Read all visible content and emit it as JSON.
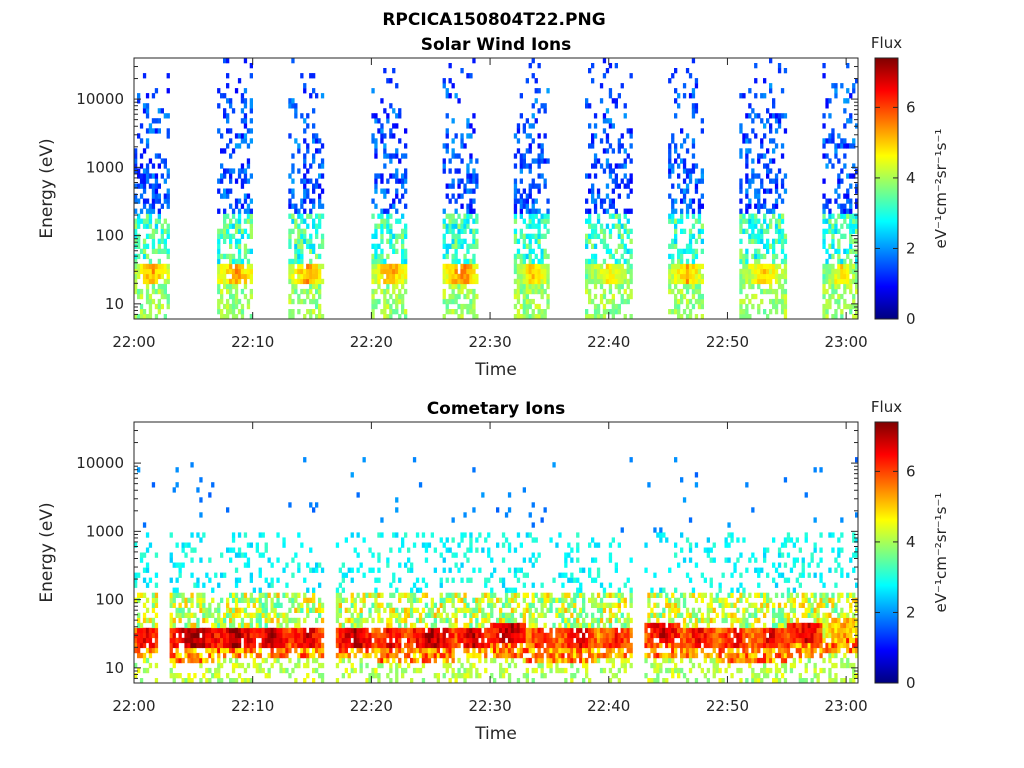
{
  "figure": {
    "title": "RPCICA150804T22.PNG"
  },
  "colorscale": {
    "colors": [
      "#00007f",
      "#0000ff",
      "#007fff",
      "#00ffff",
      "#7fff7f",
      "#ffff00",
      "#ff7f00",
      "#ff0000",
      "#7f0000"
    ],
    "range": [
      0,
      7.4
    ]
  },
  "chart_data": [
    {
      "type": "heatmap",
      "title": "Solar Wind Ions",
      "xlabel": "Time",
      "ylabel": "Energy (eV)",
      "xlim": [
        "22:00",
        "23:01"
      ],
      "ylim": [
        6,
        40000
      ],
      "yscale": "log",
      "xticks": [
        "22:00",
        "22:10",
        "22:20",
        "22:30",
        "22:40",
        "22:50",
        "23:00"
      ],
      "yticks": [
        "10",
        "100",
        "1000",
        "10000"
      ],
      "colorbar_label": "Flux",
      "colorbar_unit": "eV⁻¹cm⁻²sr⁻¹s⁻¹",
      "colorbar_ticks": [
        "0",
        "2",
        "4",
        "6"
      ],
      "bursts": [
        {
          "start": "22:00",
          "end": "22:03",
          "peak_energy_eV": 30,
          "peak_flux": 5.3
        },
        {
          "start": "22:07",
          "end": "22:10",
          "peak_energy_eV": 30,
          "peak_flux": 5.5
        },
        {
          "start": "22:13",
          "end": "22:16",
          "peak_energy_eV": 30,
          "peak_flux": 5.3
        },
        {
          "start": "22:20",
          "end": "22:23",
          "peak_energy_eV": 30,
          "peak_flux": 5.4
        },
        {
          "start": "22:26",
          "end": "22:29",
          "peak_energy_eV": 30,
          "peak_flux": 5.6
        },
        {
          "start": "22:32",
          "end": "22:35",
          "peak_energy_eV": 28,
          "peak_flux": 5.0
        },
        {
          "start": "22:38",
          "end": "22:42",
          "peak_energy_eV": 28,
          "peak_flux": 4.8
        },
        {
          "start": "22:45",
          "end": "22:48",
          "peak_energy_eV": 28,
          "peak_flux": 5.2
        },
        {
          "start": "22:51",
          "end": "22:55",
          "peak_energy_eV": 28,
          "peak_flux": 5.0
        },
        {
          "start": "22:58",
          "end": "23:01",
          "peak_energy_eV": 28,
          "peak_flux": 4.8
        }
      ]
    },
    {
      "type": "heatmap",
      "title": "Cometary Ions",
      "xlabel": "Time",
      "ylabel": "Energy (eV)",
      "xlim": [
        "22:00",
        "23:01"
      ],
      "ylim": [
        6,
        40000
      ],
      "yscale": "log",
      "xticks": [
        "22:00",
        "22:10",
        "22:20",
        "22:30",
        "22:40",
        "22:50",
        "23:00"
      ],
      "yticks": [
        "10",
        "100",
        "1000",
        "10000"
      ],
      "colorbar_label": "Flux",
      "colorbar_unit": "eV⁻¹cm⁻²sr⁻¹s⁻¹",
      "colorbar_ticks": [
        "0",
        "2",
        "4",
        "6"
      ],
      "bursts": [
        {
          "start": "22:00",
          "end": "22:02",
          "peak_energy_eV": 30,
          "peak_flux": 6.8
        },
        {
          "start": "22:03",
          "end": "22:07",
          "peak_energy_eV": 28,
          "peak_flux": 7.2
        },
        {
          "start": "22:07",
          "end": "22:10",
          "peak_energy_eV": 30,
          "peak_flux": 7.2
        },
        {
          "start": "22:10",
          "end": "22:13",
          "peak_energy_eV": 30,
          "peak_flux": 7.0
        },
        {
          "start": "22:13",
          "end": "22:16",
          "peak_energy_eV": 30,
          "peak_flux": 6.8
        },
        {
          "start": "22:17",
          "end": "22:20",
          "peak_energy_eV": 30,
          "peak_flux": 7.1
        },
        {
          "start": "22:20",
          "end": "22:23",
          "peak_energy_eV": 28,
          "peak_flux": 6.6
        },
        {
          "start": "22:23",
          "end": "22:27",
          "peak_energy_eV": 28,
          "peak_flux": 7.0
        },
        {
          "start": "22:27",
          "end": "22:30",
          "peak_energy_eV": 30,
          "peak_flux": 6.9
        },
        {
          "start": "22:30",
          "end": "22:33",
          "peak_energy_eV": 32,
          "peak_flux": 7.1
        },
        {
          "start": "22:33",
          "end": "22:36",
          "peak_energy_eV": 28,
          "peak_flux": 6.5
        },
        {
          "start": "22:36",
          "end": "22:39",
          "peak_energy_eV": 28,
          "peak_flux": 6.7
        },
        {
          "start": "22:39",
          "end": "22:42",
          "peak_energy_eV": 30,
          "peak_flux": 6.4
        },
        {
          "start": "22:43",
          "end": "22:46",
          "peak_energy_eV": 32,
          "peak_flux": 6.9
        },
        {
          "start": "22:46",
          "end": "22:49",
          "peak_energy_eV": 30,
          "peak_flux": 6.6
        },
        {
          "start": "22:49",
          "end": "22:52",
          "peak_energy_eV": 28,
          "peak_flux": 6.5
        },
        {
          "start": "22:52",
          "end": "22:55",
          "peak_energy_eV": 28,
          "peak_flux": 6.6
        },
        {
          "start": "22:55",
          "end": "22:58",
          "peak_energy_eV": 32,
          "peak_flux": 6.8
        },
        {
          "start": "22:58",
          "end": "23:01",
          "peak_energy_eV": 40,
          "peak_flux": 5.4
        }
      ]
    }
  ]
}
